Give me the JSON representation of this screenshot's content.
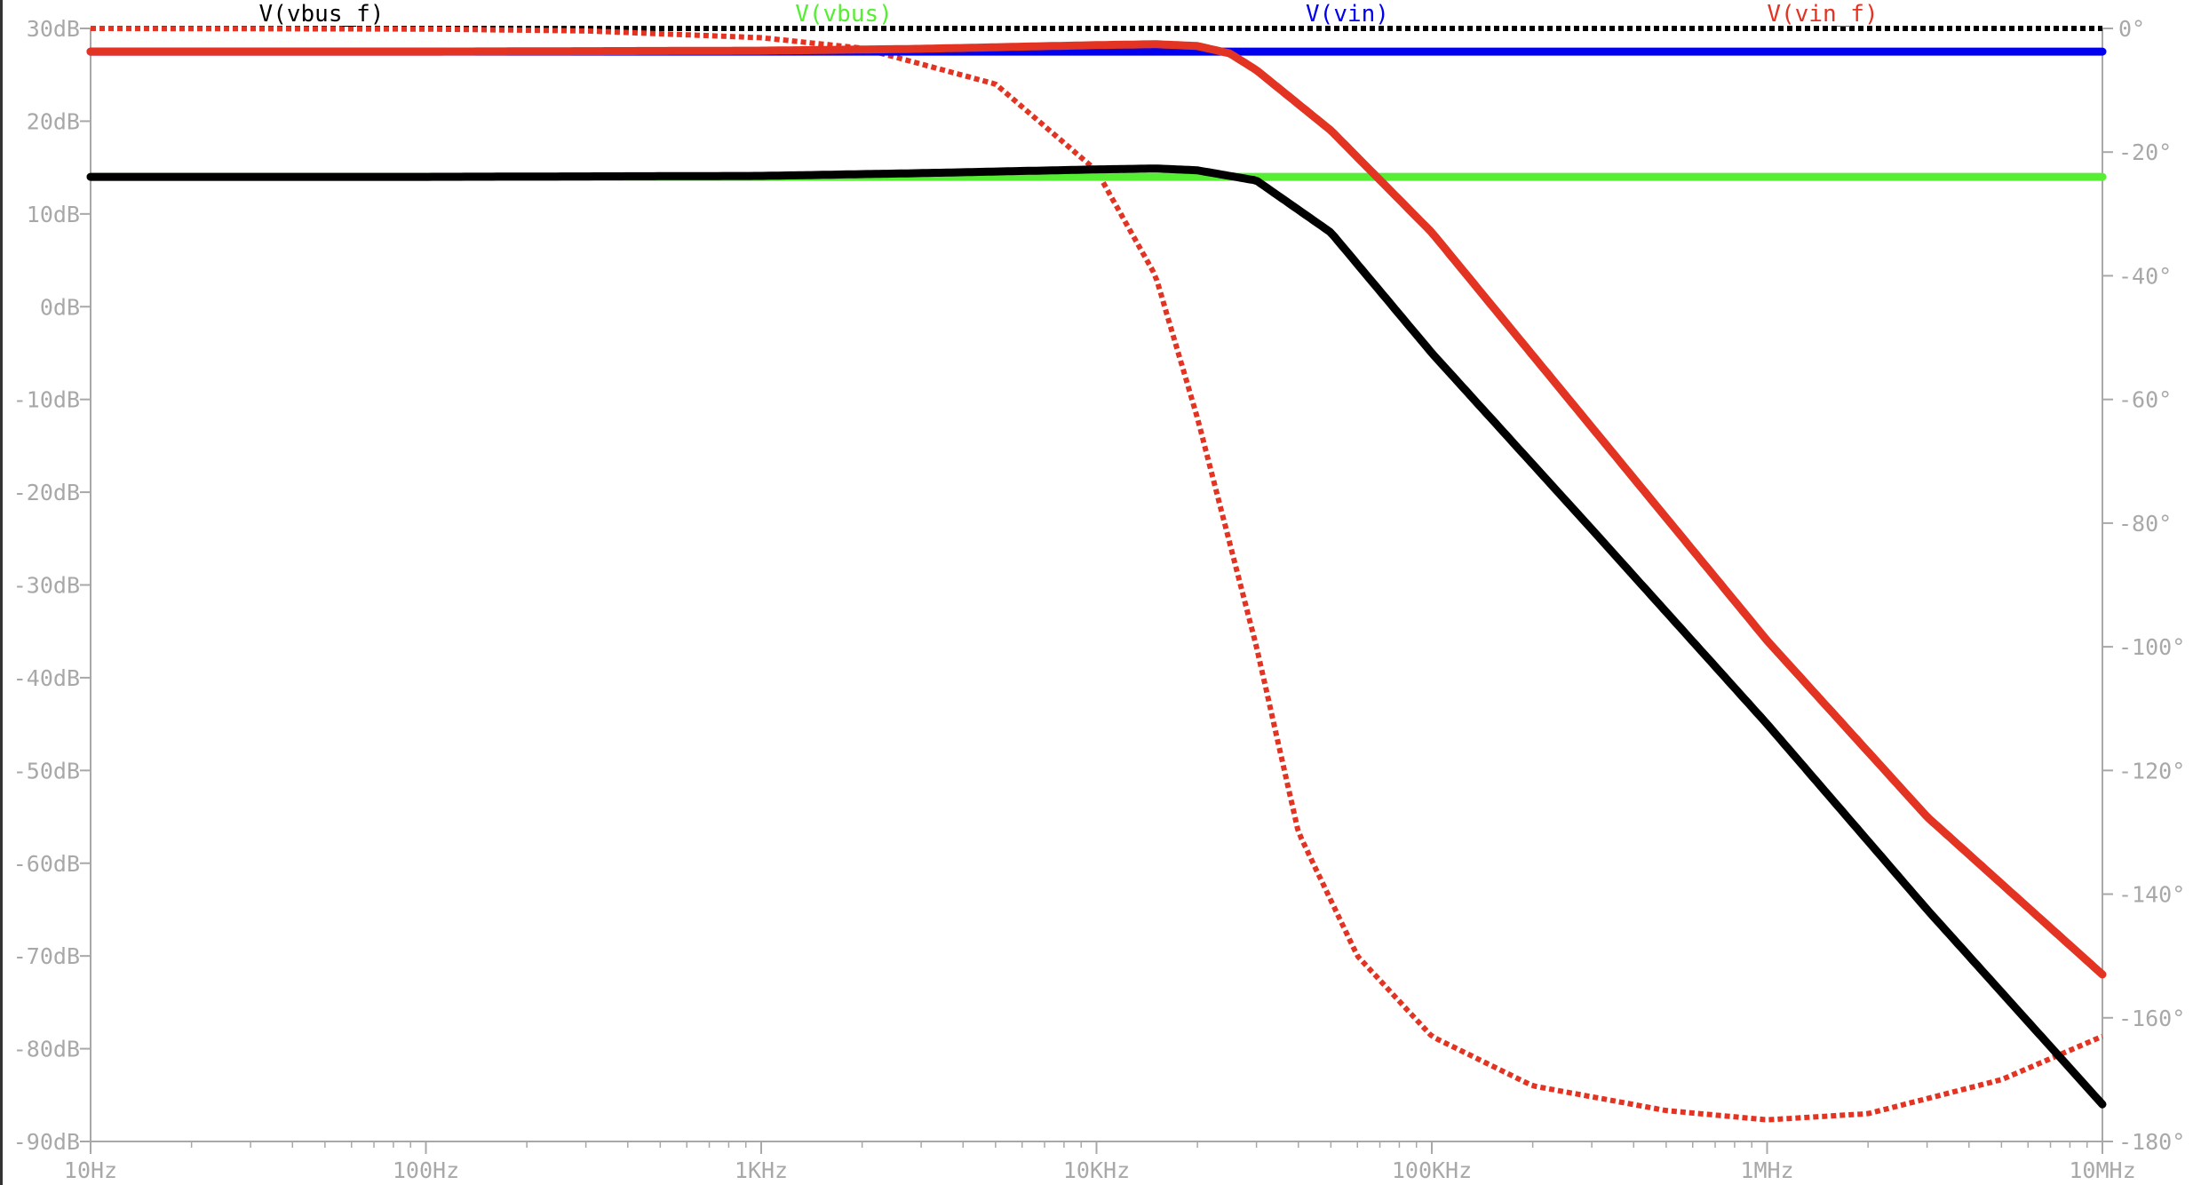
{
  "chart_data": {
    "type": "line",
    "title": "",
    "xscale": "log",
    "xlim": [
      10,
      10000000
    ],
    "x_tick_values": [
      10,
      100,
      1000,
      10000,
      100000,
      1000000,
      10000000
    ],
    "x_tick_labels": [
      "10Hz",
      "100Hz",
      "1KHz",
      "10KHz",
      "100KHz",
      "1MHz",
      "10MHz"
    ],
    "y_left": {
      "unit": "dB",
      "lim": [
        -90,
        30
      ],
      "tick_values": [
        30,
        20,
        10,
        0,
        -10,
        -20,
        -30,
        -40,
        -50,
        -60,
        -70,
        -80,
        -90
      ],
      "tick_labels": [
        "30dB",
        "20dB",
        "10dB",
        "0dB",
        "-10dB",
        "-20dB",
        "-30dB",
        "-40dB",
        "-50dB",
        "-60dB",
        "-70dB",
        "-80dB",
        "-90dB"
      ]
    },
    "y_right": {
      "unit": "degrees",
      "lim": [
        -180,
        0
      ],
      "tick_values": [
        0,
        -20,
        -40,
        -60,
        -80,
        -100,
        -120,
        -140,
        -160,
        -180
      ],
      "tick_labels": [
        "0°",
        "-20°",
        "-40°",
        "-60°",
        "-80°",
        "-100°",
        "-120°",
        "-140°",
        "-160°",
        "-180°"
      ]
    },
    "grid": false,
    "legend_position": "top",
    "series": [
      {
        "name": "V(vbus_f)",
        "color": "#000000",
        "magnitude_db": {
          "x": [
            10,
            100,
            1000,
            3000,
            10000,
            15000,
            20000,
            30000,
            50000,
            100000,
            300000,
            1000000,
            3000000,
            10000000
          ],
          "y": [
            14,
            14,
            14.1,
            14.4,
            14.8,
            14.9,
            14.7,
            13.6,
            8,
            -5,
            -24,
            -45,
            -65,
            -86
          ]
        },
        "phase_deg": {
          "x": [
            10,
            10000000
          ],
          "y": [
            0,
            0
          ]
        }
      },
      {
        "name": "V(vbus)",
        "color": "#55ee33",
        "magnitude_db": {
          "x": [
            10,
            10000000
          ],
          "y": [
            14,
            14
          ]
        },
        "phase_deg": {
          "x": [
            10,
            10000000
          ],
          "y": [
            0,
            0
          ]
        }
      },
      {
        "name": "V(vin)",
        "color": "#0000ee",
        "magnitude_db": {
          "x": [
            10,
            10000000
          ],
          "y": [
            27.5,
            27.5
          ]
        },
        "phase_deg": {
          "x": [
            10,
            10000000
          ],
          "y": [
            0,
            0
          ]
        }
      },
      {
        "name": "V(vin_f)",
        "color": "#e33322",
        "magnitude_db": {
          "x": [
            10,
            100,
            1000,
            3000,
            10000,
            15000,
            20000,
            25000,
            30000,
            50000,
            100000,
            300000,
            1000000,
            3000000,
            10000000
          ],
          "y": [
            27.5,
            27.5,
            27.6,
            27.8,
            28.2,
            28.3,
            28.1,
            27.3,
            25.5,
            19,
            8,
            -13,
            -36,
            -55,
            -72
          ]
        },
        "phase_deg": {
          "x": [
            10,
            100,
            300,
            1000,
            2000,
            5000,
            10000,
            15000,
            20000,
            30000,
            40000,
            60000,
            100000,
            200000,
            500000,
            1000000,
            2000000,
            5000000,
            10000000
          ],
          "y": [
            0,
            -0.1,
            -0.4,
            -1.5,
            -3.2,
            -9,
            -23,
            -40,
            -63,
            -100,
            -130,
            -150,
            -163,
            -171,
            -175,
            -176.5,
            -175.5,
            -170,
            -163
          ]
        }
      }
    ]
  }
}
